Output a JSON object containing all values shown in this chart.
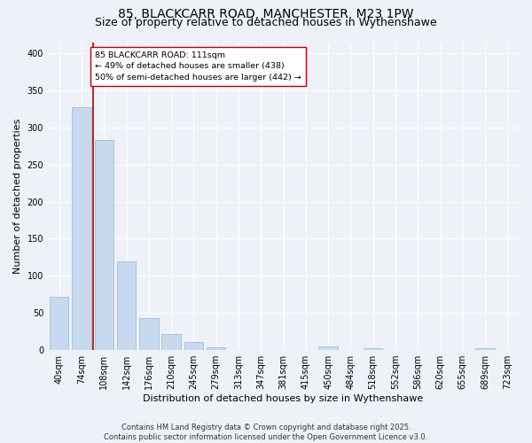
{
  "title_line1": "85, BLACKCARR ROAD, MANCHESTER, M23 1PW",
  "title_line2": "Size of property relative to detached houses in Wythenshawe",
  "xlabel": "Distribution of detached houses by size in Wythenshawe",
  "ylabel": "Number of detached properties",
  "bar_color": "#c6d9ee",
  "bar_edge_color": "#a0bdd8",
  "categories": [
    "40sqm",
    "74sqm",
    "108sqm",
    "142sqm",
    "176sqm",
    "210sqm",
    "245sqm",
    "279sqm",
    "313sqm",
    "347sqm",
    "381sqm",
    "415sqm",
    "450sqm",
    "484sqm",
    "518sqm",
    "552sqm",
    "586sqm",
    "620sqm",
    "655sqm",
    "689sqm",
    "723sqm"
  ],
  "values": [
    72,
    327,
    283,
    120,
    43,
    22,
    11,
    4,
    0,
    0,
    0,
    0,
    5,
    0,
    2,
    0,
    0,
    0,
    0,
    3,
    0
  ],
  "vline_idx": 1.5,
  "vline_color": "#bb0000",
  "annotation_text": "85 BLACKCARR ROAD: 111sqm\n← 49% of detached houses are smaller (438)\n50% of semi-detached houses are larger (442) →",
  "annotation_box_color": "#ffffff",
  "annotation_box_edge": "#bb0000",
  "ylim": [
    0,
    415
  ],
  "yticks": [
    0,
    50,
    100,
    150,
    200,
    250,
    300,
    350,
    400
  ],
  "background_color": "#eef2f8",
  "footer_text": "Contains HM Land Registry data © Crown copyright and database right 2025.\nContains public sector information licensed under the Open Government Licence v3.0.",
  "grid_color": "#ffffff",
  "title_fontsize": 10,
  "subtitle_fontsize": 9,
  "tick_fontsize": 7,
  "axis_label_fontsize": 8
}
